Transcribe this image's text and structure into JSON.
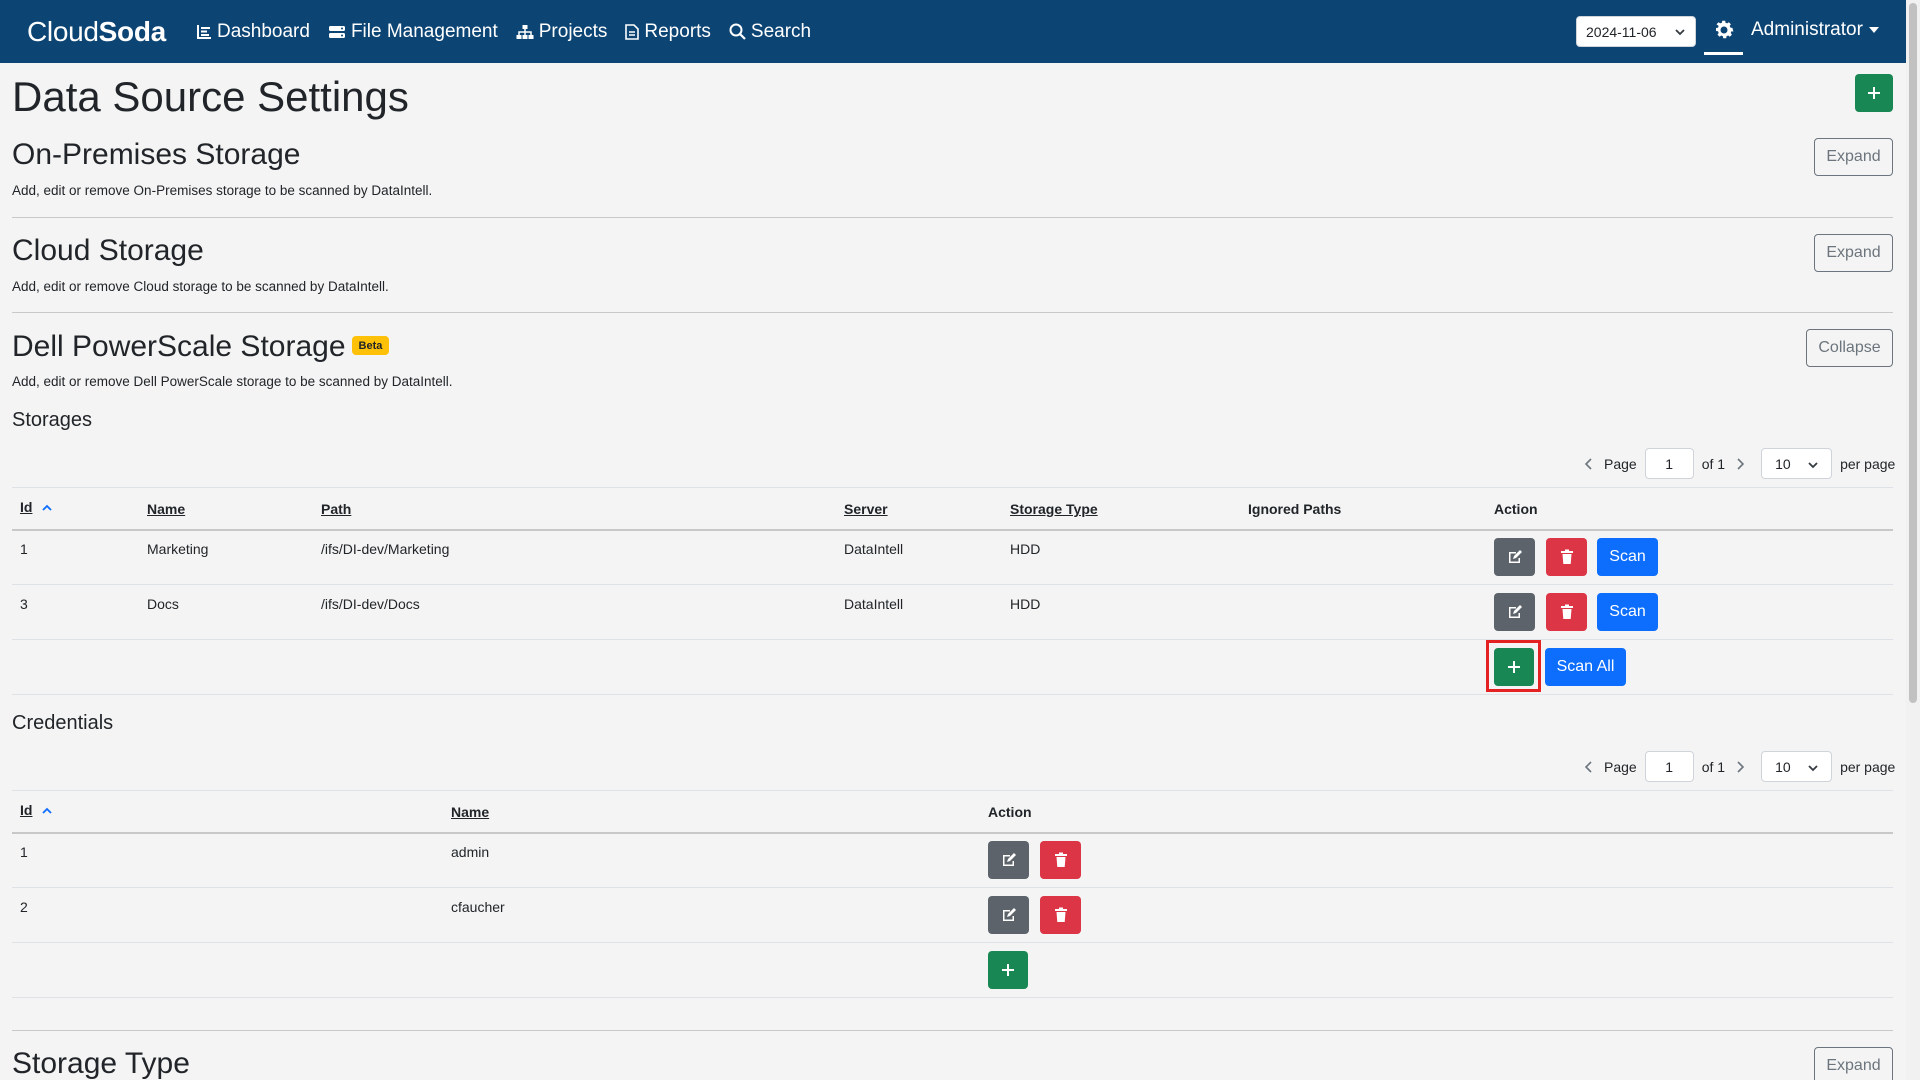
{
  "nav": {
    "brand_part1": "Cloud",
    "brand_part2": "Soda",
    "items": [
      {
        "label": "Dashboard",
        "icon": "chart-icon"
      },
      {
        "label": "File Management",
        "icon": "drive-icon"
      },
      {
        "label": "Projects",
        "icon": "sitemap-icon"
      },
      {
        "label": "Reports",
        "icon": "document-icon"
      },
      {
        "label": "Search",
        "icon": "search-icon"
      }
    ],
    "date": "2024-11-06",
    "user": "Administrator"
  },
  "page": {
    "title": "Data Source Settings"
  },
  "sections": {
    "onprem": {
      "title": "On-Premises Storage",
      "desc": "Add, edit or remove On-Premises storage to be scanned by DataIntell.",
      "button": "Expand"
    },
    "cloud": {
      "title": "Cloud Storage",
      "desc": "Add, edit or remove Cloud storage to be scanned by DataIntell.",
      "button": "Expand"
    },
    "dell": {
      "title": "Dell PowerScale Storage",
      "badge": "Beta",
      "desc": "Add, edit or remove Dell PowerScale storage to be scanned by DataIntell.",
      "button": "Collapse"
    },
    "storagetype": {
      "title": "Storage Type",
      "button": "Expand"
    }
  },
  "storages": {
    "title": "Storages",
    "pager": {
      "page_label": "Page",
      "page": "1",
      "of_label": "of 1",
      "per_page": "10",
      "per_page_label": "per page"
    },
    "headers": [
      "Id",
      "Name",
      "Path",
      "Server",
      "Storage Type",
      "Ignored Paths",
      "Action"
    ],
    "rows": [
      {
        "id": "1",
        "name": "Marketing",
        "path": "/ifs/DI-dev/Marketing",
        "server": "DataIntell",
        "type": "HDD",
        "ignored": ""
      },
      {
        "id": "3",
        "name": "Docs",
        "path": "/ifs/DI-dev/Docs",
        "server": "DataIntell",
        "type": "HDD",
        "ignored": ""
      }
    ],
    "scan_label": "Scan",
    "scan_all_label": "Scan All"
  },
  "credentials": {
    "title": "Credentials",
    "pager": {
      "page_label": "Page",
      "page": "1",
      "of_label": "of 1",
      "per_page": "10",
      "per_page_label": "per page"
    },
    "headers": [
      "Id",
      "Name",
      "Action"
    ],
    "rows": [
      {
        "id": "1",
        "name": "admin"
      },
      {
        "id": "2",
        "name": "cfaucher"
      }
    ]
  },
  "colors": {
    "navbar": "#0c4474",
    "green": "#198754",
    "red": "#dc3545",
    "blue": "#0d6efd",
    "gray": "#5c636a",
    "badge": "#ffc107",
    "highlight": "#e52222"
  }
}
